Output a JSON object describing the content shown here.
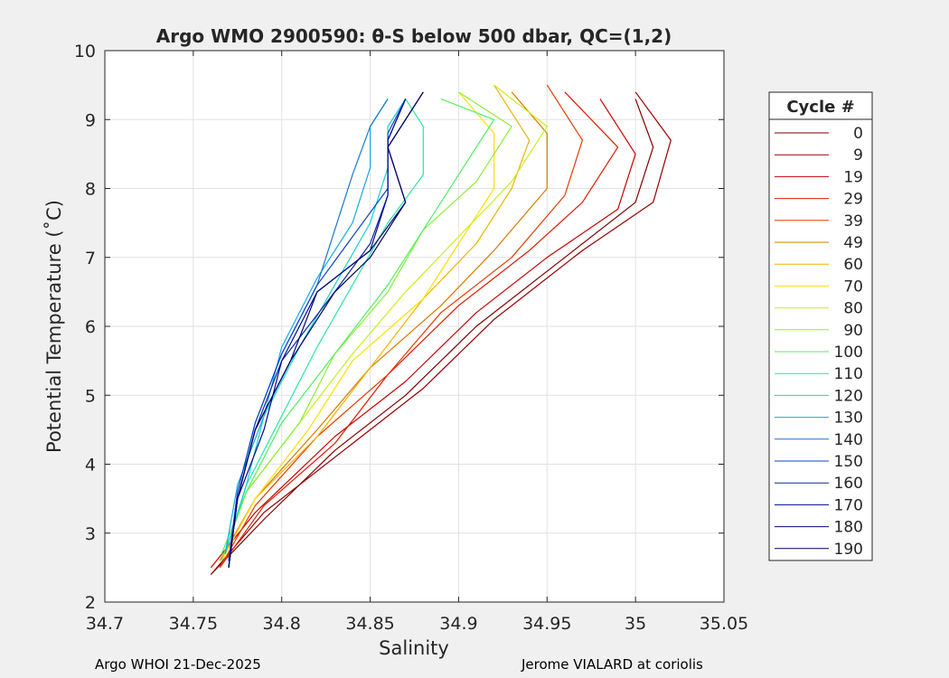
{
  "chart_data": {
    "type": "line",
    "title": "Argo WMO 2900590: θ-S below 500 dbar,  QC=(1,2)",
    "xlabel": "Salinity",
    "ylabel": "Potential Temperature (˚C)",
    "xlim": [
      34.7,
      35.05
    ],
    "ylim": [
      2,
      10
    ],
    "xticks": [
      "34.7",
      "34.75",
      "34.8",
      "34.85",
      "34.9",
      "34.95",
      "35",
      "35.05"
    ],
    "yticks": [
      "2",
      "3",
      "4",
      "5",
      "6",
      "7",
      "8",
      "9",
      "10"
    ],
    "grid": true,
    "legend": {
      "title": "Cycle #",
      "placement": "outside-right",
      "entries": [
        "0",
        "9",
        "19",
        "29",
        "39",
        "49",
        "60",
        "70",
        "80",
        "90",
        "100",
        "110",
        "120",
        "130",
        "140",
        "150",
        "160",
        "170",
        "180",
        "190"
      ],
      "colors": [
        "#800000",
        "#990000",
        "#cc0000",
        "#dd1a00",
        "#e63c00",
        "#d97a00",
        "#f0b400",
        "#ffe000",
        "#c8f01e",
        "#8cf032",
        "#50f064",
        "#28e6a0",
        "#14d2d2",
        "#14aadc",
        "#1478d2",
        "#0a46c8",
        "#0a28a0",
        "#000a8c",
        "#000a78",
        "#000064"
      ]
    },
    "series": [
      {
        "name": "0",
        "x": [
          34.76,
          34.79,
          34.83,
          34.87,
          34.91,
          34.96,
          35.0,
          35.01,
          35.0
        ],
        "y": [
          2.4,
          3.2,
          4.2,
          5.0,
          6.0,
          7.0,
          7.8,
          8.6,
          9.3
        ]
      },
      {
        "name": "9",
        "x": [
          34.76,
          34.79,
          34.84,
          34.88,
          34.92,
          34.97,
          35.01,
          35.02,
          35.0
        ],
        "y": [
          2.4,
          3.3,
          4.3,
          5.1,
          6.1,
          7.1,
          7.8,
          8.7,
          9.4
        ]
      },
      {
        "name": "19",
        "x": [
          34.76,
          34.785,
          34.83,
          34.87,
          34.91,
          34.95,
          34.99,
          35.0,
          34.98
        ],
        "y": [
          2.5,
          3.3,
          4.4,
          5.2,
          6.2,
          7.0,
          7.7,
          8.5,
          9.3
        ]
      },
      {
        "name": "29",
        "x": [
          34.765,
          34.79,
          34.83,
          34.86,
          34.9,
          34.94,
          34.97,
          34.99,
          34.96
        ],
        "y": [
          2.5,
          3.4,
          4.3,
          5.3,
          6.3,
          7.1,
          7.8,
          8.6,
          9.4
        ]
      },
      {
        "name": "39",
        "x": [
          34.765,
          34.785,
          34.82,
          34.86,
          34.89,
          34.93,
          34.96,
          34.97,
          34.95
        ],
        "y": [
          2.5,
          3.4,
          4.4,
          5.3,
          6.2,
          7.0,
          7.9,
          8.7,
          9.5
        ]
      },
      {
        "name": "49",
        "x": [
          34.765,
          34.785,
          34.82,
          34.85,
          34.89,
          34.92,
          34.95,
          34.95,
          34.93
        ],
        "y": [
          2.6,
          3.5,
          4.5,
          5.4,
          6.3,
          7.1,
          8.0,
          8.8,
          9.4
        ]
      },
      {
        "name": "60",
        "x": [
          34.766,
          34.785,
          34.82,
          34.85,
          34.88,
          34.91,
          34.93,
          34.94,
          34.92
        ],
        "y": [
          2.6,
          3.5,
          4.4,
          5.4,
          6.4,
          7.2,
          8.0,
          8.7,
          9.5
        ]
      },
      {
        "name": "70",
        "x": [
          34.766,
          34.785,
          34.815,
          34.84,
          34.88,
          34.9,
          34.92,
          34.92,
          34.9
        ],
        "y": [
          2.6,
          3.5,
          4.5,
          5.5,
          6.4,
          7.2,
          8.0,
          8.8,
          9.4
        ]
      },
      {
        "name": "80",
        "x": [
          34.766,
          34.78,
          34.81,
          34.84,
          34.87,
          34.9,
          34.93,
          34.95,
          34.92
        ],
        "y": [
          2.6,
          3.6,
          4.6,
          5.6,
          6.5,
          7.3,
          8.1,
          8.9,
          9.5
        ]
      },
      {
        "name": "90",
        "x": [
          34.766,
          34.78,
          34.81,
          34.83,
          34.86,
          34.88,
          34.91,
          34.93,
          34.9
        ],
        "y": [
          2.6,
          3.6,
          4.6,
          5.6,
          6.5,
          7.4,
          8.1,
          8.9,
          9.4
        ]
      },
      {
        "name": "100",
        "x": [
          34.766,
          34.78,
          34.8,
          34.83,
          34.86,
          34.88,
          34.9,
          34.92,
          34.89
        ],
        "y": [
          2.7,
          3.6,
          4.6,
          5.6,
          6.6,
          7.4,
          8.2,
          9.0,
          9.3
        ]
      },
      {
        "name": "110",
        "x": [
          34.768,
          34.78,
          34.8,
          34.82,
          34.84,
          34.86,
          34.88,
          34.88,
          34.87
        ],
        "y": [
          2.7,
          3.7,
          4.7,
          5.7,
          6.6,
          7.5,
          8.2,
          8.9,
          9.3
        ]
      },
      {
        "name": "120",
        "x": [
          34.768,
          34.78,
          34.79,
          34.81,
          34.83,
          34.85,
          34.86,
          34.86,
          34.87
        ],
        "y": [
          2.7,
          3.7,
          4.7,
          5.7,
          6.6,
          7.5,
          8.3,
          8.9,
          9.3
        ]
      },
      {
        "name": "130",
        "x": [
          34.768,
          34.775,
          34.79,
          34.8,
          34.82,
          34.84,
          34.85,
          34.85,
          34.86
        ],
        "y": [
          2.7,
          3.7,
          4.7,
          5.7,
          6.7,
          7.5,
          8.3,
          8.9,
          9.3
        ]
      },
      {
        "name": "140",
        "x": [
          34.77,
          34.775,
          34.785,
          34.8,
          34.82,
          34.83,
          34.84,
          34.85,
          34.86
        ],
        "y": [
          2.6,
          3.6,
          4.6,
          5.6,
          6.6,
          7.4,
          8.2,
          8.9,
          9.3
        ]
      },
      {
        "name": "150",
        "x": [
          34.77,
          34.775,
          34.785,
          34.8,
          34.82,
          34.84,
          34.86,
          34.86,
          34.87
        ],
        "y": [
          2.6,
          3.6,
          4.6,
          5.6,
          6.6,
          7.3,
          8.0,
          8.8,
          9.3
        ]
      },
      {
        "name": "160",
        "x": [
          34.77,
          34.775,
          34.785,
          34.8,
          34.83,
          34.85,
          34.86,
          34.86,
          34.87
        ],
        "y": [
          2.5,
          3.5,
          4.5,
          5.5,
          6.5,
          7.2,
          7.9,
          8.7,
          9.3
        ]
      },
      {
        "name": "170",
        "x": [
          34.77,
          34.775,
          34.79,
          34.8,
          34.82,
          34.85,
          34.86,
          34.86,
          34.87
        ],
        "y": [
          2.5,
          3.5,
          4.5,
          5.5,
          6.5,
          7.1,
          7.9,
          8.7,
          9.3
        ]
      },
      {
        "name": "180",
        "x": [
          34.77,
          34.775,
          34.785,
          34.805,
          34.82,
          34.85,
          34.87,
          34.86,
          34.88
        ],
        "y": [
          2.5,
          3.5,
          4.5,
          5.5,
          6.5,
          7.1,
          7.8,
          8.6,
          9.4
        ]
      },
      {
        "name": "190",
        "x": [
          34.77,
          34.775,
          34.785,
          34.805,
          34.83,
          34.85,
          34.87,
          34.86,
          34.88
        ],
        "y": [
          2.5,
          3.5,
          4.5,
          5.5,
          6.5,
          7.0,
          7.8,
          8.6,
          9.4
        ]
      }
    ]
  },
  "footer": {
    "left": "Argo WHOI 21-Dec-2025",
    "right": "Jerome VIALARD at coriolis"
  }
}
